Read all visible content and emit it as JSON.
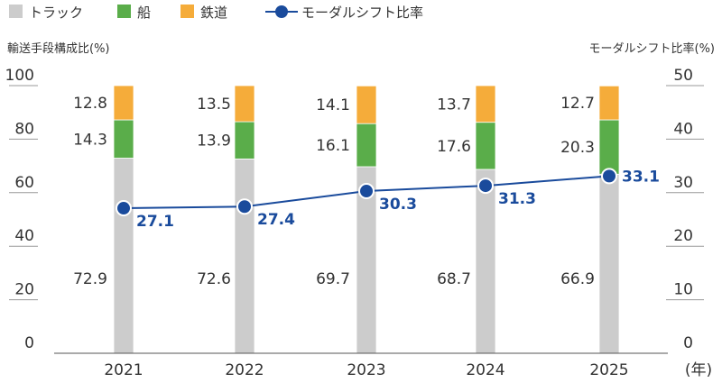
{
  "chart_data": {
    "type": "bar",
    "stacked": true,
    "categories": [
      "2021",
      "2022",
      "2023",
      "2024",
      "2025"
    ],
    "x_unit": "(年)",
    "series": [
      {
        "name": "トラック",
        "axis": "left",
        "color": "#cccccc",
        "values": [
          72.9,
          72.6,
          69.7,
          68.7,
          66.9
        ]
      },
      {
        "name": "船",
        "axis": "left",
        "color": "#5aad4a",
        "values": [
          14.3,
          13.9,
          16.1,
          17.6,
          20.3
        ]
      },
      {
        "name": "鉄道",
        "axis": "left",
        "color": "#f5ac3a",
        "values": [
          12.8,
          13.5,
          14.1,
          13.7,
          12.7
        ]
      },
      {
        "name": "モーダルシフト比率",
        "type": "line",
        "axis": "right",
        "color": "#1a4b9c",
        "values": [
          27.1,
          27.4,
          30.3,
          31.3,
          33.1
        ]
      }
    ],
    "ylabel": "輸送手段構成比(%)",
    "ylim": [
      0,
      100
    ],
    "yticks": [
      "0",
      "20",
      "40",
      "60",
      "80",
      "100"
    ],
    "y2label": "モーダルシフト比率(%)",
    "y2lim": [
      0,
      50
    ],
    "y2ticks": [
      "0",
      "10",
      "20",
      "30",
      "40",
      "50"
    ],
    "legend": "top-left",
    "grid": false
  }
}
